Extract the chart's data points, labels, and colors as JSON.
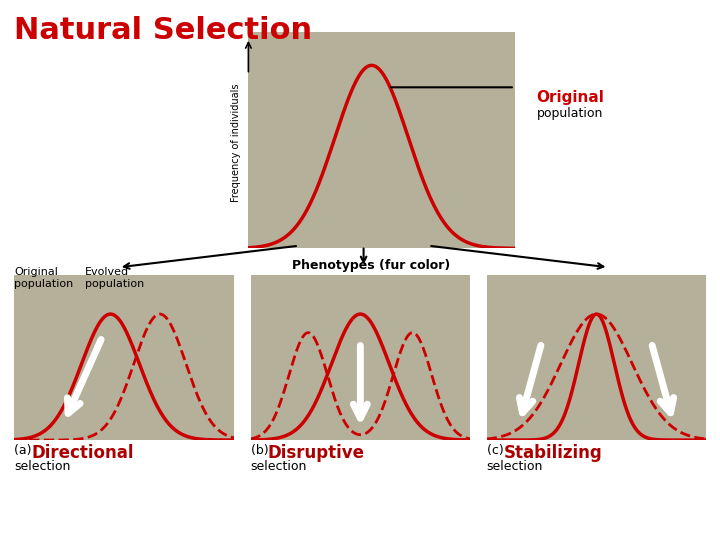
{
  "title": "Natural Selection",
  "title_color": "#cc0000",
  "title_fontsize": 22,
  "white_bg": "#ffffff",
  "curve_color": "#cc0000",
  "curve_lw": 2.5,
  "dashed_lw": 2.0,
  "ylabel": "Frequency of individuals",
  "panel_bg": "#b5b09a",
  "orig_label": "Original",
  "orig_sub": "population",
  "orig_label_color": "#cc0000",
  "label_bold_color": "#aa0000"
}
